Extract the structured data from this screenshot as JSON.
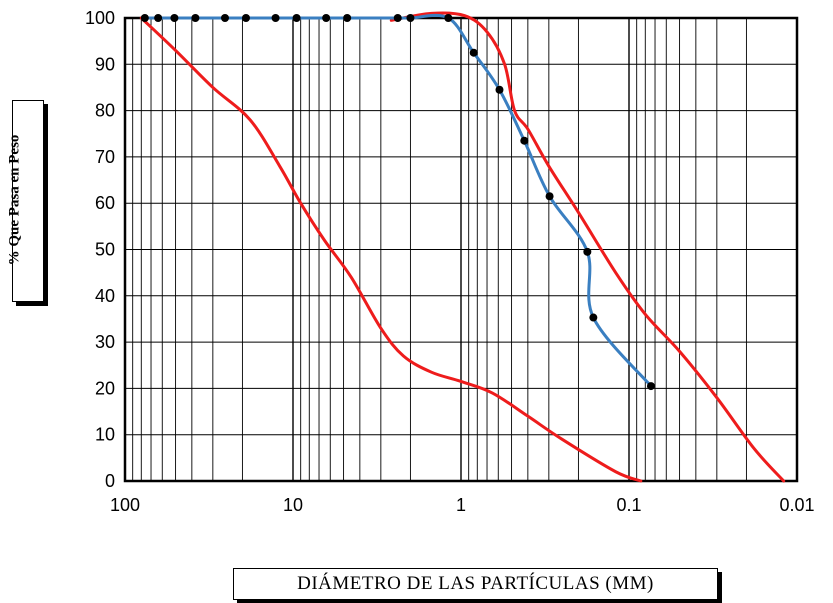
{
  "chart_data": {
    "type": "line",
    "xlabel": "DIÁMETRO DE LAS PARTÍCULAS (MM)",
    "ylabel": "% Que Pasa en Peso",
    "x_scale": "log",
    "x_reversed": true,
    "xlim": [
      100,
      0.01
    ],
    "ylim": [
      0,
      100
    ],
    "x_ticks": [
      100,
      10,
      1,
      0.1,
      0.01
    ],
    "x_tick_labels": [
      "100",
      "10",
      "1",
      "0.1",
      "0.01"
    ],
    "y_ticks": [
      0,
      10,
      20,
      30,
      40,
      50,
      60,
      70,
      80,
      90,
      100
    ],
    "y_tick_labels": [
      "0",
      "10",
      "20",
      "30",
      "40",
      "50",
      "60",
      "70",
      "80",
      "90",
      "100"
    ],
    "grid": true,
    "series": [
      {
        "role": "sample",
        "color": "#3a7fc1",
        "marker": "dot",
        "points": [
          [
            76.2,
            100
          ],
          [
            63.5,
            100
          ],
          [
            50.8,
            100
          ],
          [
            38.1,
            100
          ],
          [
            25.4,
            100
          ],
          [
            19.05,
            100
          ],
          [
            12.7,
            100
          ],
          [
            9.52,
            100
          ],
          [
            6.35,
            100
          ],
          [
            4.76,
            100
          ],
          [
            2.38,
            100
          ],
          [
            2.0,
            100
          ],
          [
            1.19,
            100
          ],
          [
            0.84,
            92.5
          ],
          [
            0.59,
            84.5
          ],
          [
            0.42,
            73.5
          ],
          [
            0.297,
            61.5
          ],
          [
            0.177,
            49.5
          ],
          [
            0.163,
            35.3
          ],
          [
            0.074,
            20.5
          ]
        ]
      },
      {
        "role": "upper-limit",
        "color": "#ee1c1c",
        "points": [
          [
            2.6,
            99.5
          ],
          [
            1.5,
            101
          ],
          [
            0.95,
            100.5
          ],
          [
            0.7,
            97
          ],
          [
            0.55,
            90
          ],
          [
            0.48,
            80
          ],
          [
            0.4,
            76
          ],
          [
            0.3,
            68
          ],
          [
            0.2,
            58
          ],
          [
            0.12,
            45
          ],
          [
            0.08,
            36
          ],
          [
            0.05,
            28
          ],
          [
            0.03,
            18
          ],
          [
            0.018,
            7
          ],
          [
            0.012,
            0
          ]
        ]
      },
      {
        "role": "lower-limit",
        "color": "#ee1c1c",
        "points": [
          [
            80,
            100
          ],
          [
            50,
            93
          ],
          [
            30,
            85
          ],
          [
            18,
            78
          ],
          [
            12,
            68
          ],
          [
            9,
            60
          ],
          [
            6.5,
            52
          ],
          [
            4.5,
            44
          ],
          [
            3,
            33
          ],
          [
            2.2,
            27
          ],
          [
            1.5,
            23.5
          ],
          [
            1.0,
            21.5
          ],
          [
            0.65,
            19
          ],
          [
            0.4,
            14
          ],
          [
            0.25,
            9
          ],
          [
            0.12,
            2
          ],
          [
            0.085,
            0
          ]
        ]
      }
    ]
  }
}
